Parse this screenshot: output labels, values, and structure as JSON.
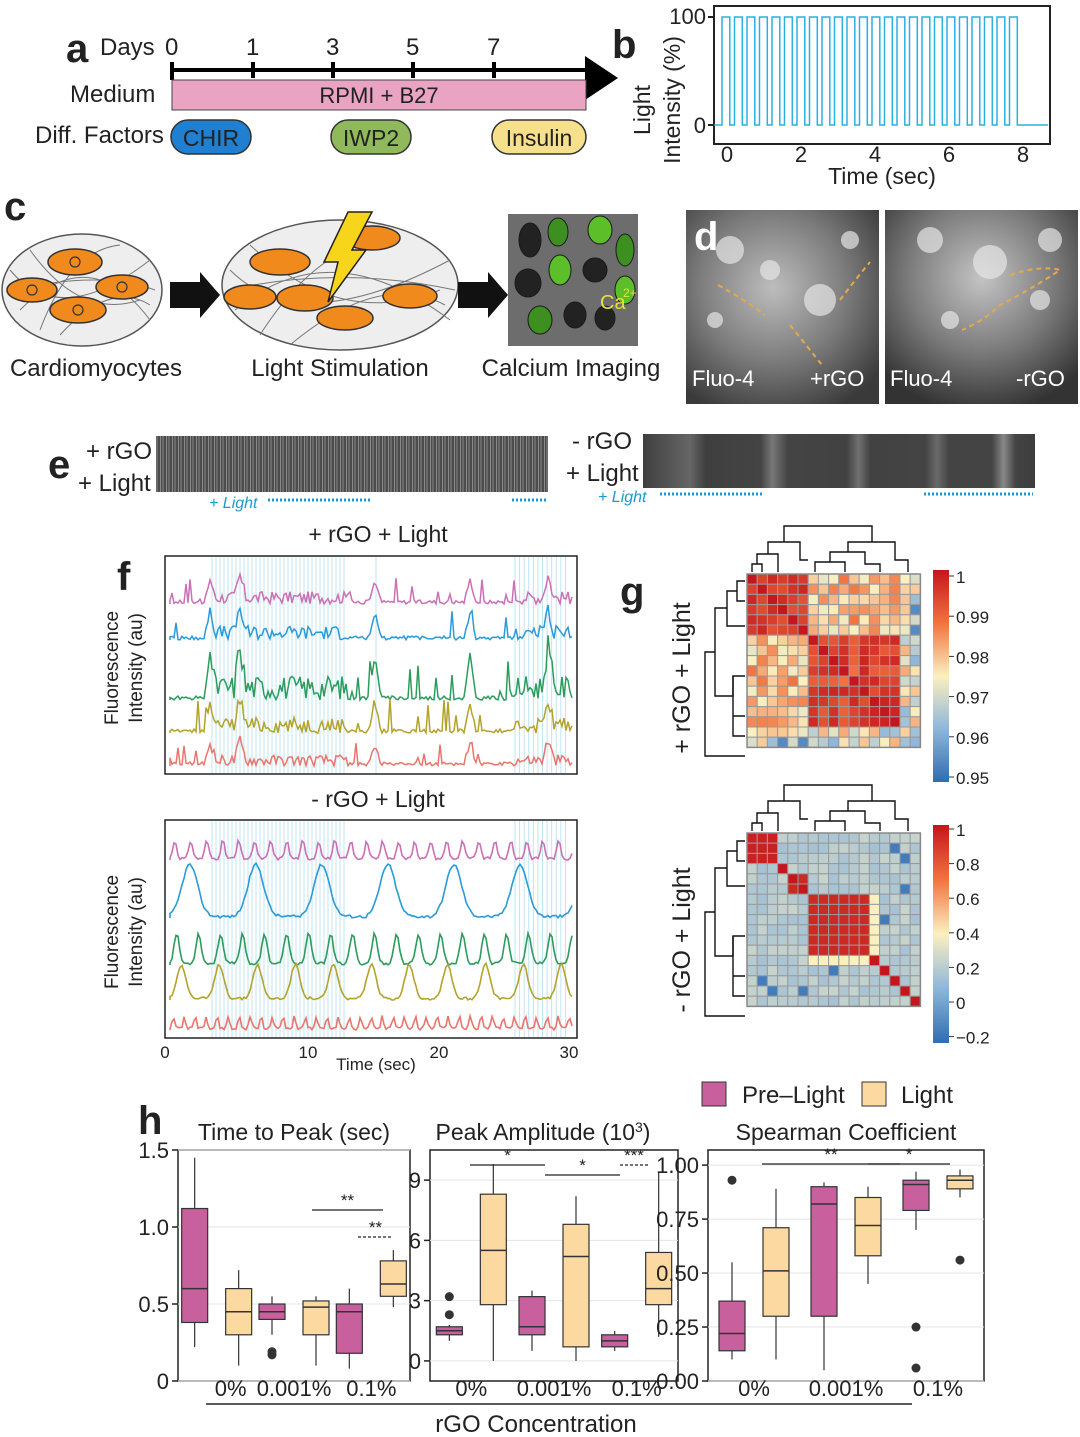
{
  "panel_letters": {
    "a": "a",
    "b": "b",
    "c": "c",
    "d": "d",
    "e": "e",
    "f": "f",
    "g": "g",
    "h": "h"
  },
  "panel_a": {
    "days_label": "Days",
    "days": [
      "0",
      "1",
      "3",
      "5",
      "7"
    ],
    "medium_label": "Medium",
    "medium_text": "RPMI + B27",
    "factors_label": "Diff. Factors",
    "factors": [
      "CHIR",
      "IWP2",
      "Insulin"
    ],
    "colors": {
      "medium": "#e9a3c3",
      "chir": "#1f7fd0",
      "iwp2": "#8fb95a",
      "insulin": "#f6e08c"
    }
  },
  "panel_b": {
    "ylabel_line1": "Light",
    "ylabel_line2": "Intensity (%)",
    "yticks": [
      "100",
      "0"
    ],
    "xticks": [
      "0",
      "2",
      "4",
      "6",
      "8"
    ],
    "xlabel": "Time (sec)",
    "pulses": 24,
    "color": "#2bb0e0"
  },
  "panel_c": {
    "labels": [
      "Cardiomyocytes",
      "Light Stimulation",
      "Calcium Imaging"
    ],
    "ca_label": "Ca",
    "ca_sup": "2+"
  },
  "panel_d": {
    "left_label": "Fluo-4",
    "left_tag": "+rGO",
    "right_label": "Fluo-4",
    "right_tag": "-rGO"
  },
  "panel_e": {
    "left_l1": "+ rGO",
    "left_l2": "+ Light",
    "right_l1": "- rGO",
    "right_l2": "+ Light",
    "light_label": "+ Light"
  },
  "panel_f": {
    "top_title": "+ rGO + Light",
    "bottom_title": "- rGO + Light",
    "ylabel_line1": "Fluorescence",
    "ylabel_line2": "Intensity (au)",
    "xticks": [
      "0",
      "10",
      "20",
      "30"
    ],
    "xlabel": "Time (sec)",
    "trace_colors": [
      "#cc6fb5",
      "#2a9ad8",
      "#2c9c5c",
      "#b3a32a",
      "#e8766c"
    ]
  },
  "panel_g": {
    "top_label": "+ rGO + Light",
    "bottom_label": "- rGO + Light",
    "top_scale": [
      "1",
      "0.99",
      "0.98",
      "0.97",
      "0.96",
      "0.95"
    ],
    "bottom_scale": [
      "1",
      "0.8",
      "0.6",
      "0.4",
      "0.2",
      "0",
      "−0.2"
    ]
  },
  "chart_data": [
    {
      "type": "box",
      "title": "Time to Peak (sec)",
      "categories": [
        "0%",
        "0.001%",
        "0.1%"
      ],
      "ylim": [
        0,
        1.5
      ],
      "yticks": [
        "0",
        "0.5",
        "1.0",
        "1.5"
      ],
      "series": [
        {
          "name": "Pre–Light",
          "boxes": [
            {
              "min": 0.22,
              "q1": 0.38,
              "median": 0.6,
              "q3": 1.12,
              "max": 1.45,
              "outliers": []
            },
            {
              "min": 0.3,
              "q1": 0.4,
              "median": 0.45,
              "q3": 0.5,
              "max": 0.55,
              "outliers": [
                0.17,
                0.19
              ]
            },
            {
              "min": 0.08,
              "q1": 0.18,
              "median": 0.45,
              "q3": 0.5,
              "max": 0.6,
              "outliers": []
            }
          ]
        },
        {
          "name": "Light",
          "boxes": [
            {
              "min": 0.1,
              "q1": 0.3,
              "median": 0.45,
              "q3": 0.6,
              "max": 0.72,
              "outliers": []
            },
            {
              "min": 0.1,
              "q1": 0.3,
              "median": 0.48,
              "q3": 0.52,
              "max": 0.55,
              "outliers": []
            },
            {
              "min": 0.48,
              "q1": 0.55,
              "median": 0.63,
              "q3": 0.78,
              "max": 0.85,
              "outliers": []
            }
          ]
        }
      ],
      "annotations": [
        "**",
        "**"
      ]
    },
    {
      "type": "box",
      "title": "Peak Amplitude (10",
      "title_sup": "3",
      "title_end": ")",
      "categories": [
        "0%",
        "0.001%",
        "0.1%"
      ],
      "ylim": [
        -1,
        10.5
      ],
      "yticks": [
        "0",
        "3",
        "6",
        "9"
      ],
      "series": [
        {
          "name": "Pre–Light",
          "boxes": [
            {
              "min": 1.0,
              "q1": 1.3,
              "median": 1.5,
              "q3": 1.7,
              "max": 1.8,
              "outliers": [
                3.2,
                2.3
              ]
            },
            {
              "min": 0.5,
              "q1": 1.3,
              "median": 1.7,
              "q3": 3.2,
              "max": 3.5,
              "outliers": []
            },
            {
              "min": 0.5,
              "q1": 0.7,
              "median": 1.0,
              "q3": 1.3,
              "max": 1.5,
              "outliers": []
            }
          ]
        },
        {
          "name": "Light",
          "boxes": [
            {
              "min": 0,
              "q1": 2.8,
              "median": 5.5,
              "q3": 8.3,
              "max": 9.8,
              "outliers": []
            },
            {
              "min": 0,
              "q1": 0.7,
              "median": 5.2,
              "q3": 6.8,
              "max": 8.2,
              "outliers": []
            },
            {
              "min": 1.2,
              "q1": 2.8,
              "median": 3.6,
              "q3": 5.4,
              "max": 9.4,
              "outliers": []
            }
          ]
        }
      ],
      "annotations": [
        "*",
        "*",
        "***"
      ]
    },
    {
      "type": "box",
      "title": "Spearman Coefficient",
      "categories": [
        "0%",
        "0.001%",
        "0.1%"
      ],
      "ylim": [
        0,
        1.07
      ],
      "yticks": [
        "0.00",
        "0.25",
        "0.50",
        "0.75",
        "1.00"
      ],
      "series": [
        {
          "name": "Pre–Light",
          "boxes": [
            {
              "min": 0.1,
              "q1": 0.14,
              "median": 0.22,
              "q3": 0.37,
              "max": 0.55,
              "outliers": [
                0.93
              ]
            },
            {
              "min": 0.05,
              "q1": 0.3,
              "median": 0.82,
              "q3": 0.9,
              "max": 0.92,
              "outliers": []
            },
            {
              "min": 0.7,
              "q1": 0.79,
              "median": 0.91,
              "q3": 0.93,
              "max": 0.97,
              "outliers": [
                0.25,
                0.06
              ]
            }
          ]
        },
        {
          "name": "Light",
          "boxes": [
            {
              "min": 0.1,
              "q1": 0.3,
              "median": 0.51,
              "q3": 0.71,
              "max": 0.89,
              "outliers": []
            },
            {
              "min": 0.45,
              "q1": 0.58,
              "median": 0.72,
              "q3": 0.85,
              "max": 0.9,
              "outliers": []
            },
            {
              "min": 0.85,
              "q1": 0.89,
              "median": 0.93,
              "q3": 0.95,
              "max": 0.98,
              "outliers": [
                0.56
              ]
            }
          ]
        }
      ],
      "annotations": [
        "**",
        "*"
      ]
    }
  ],
  "panel_h": {
    "legend": [
      "Pre–Light",
      "Light"
    ],
    "xlabel": "rGO Concentration",
    "colors": {
      "pre": "#c9609e",
      "light": "#fbd9a0"
    }
  }
}
